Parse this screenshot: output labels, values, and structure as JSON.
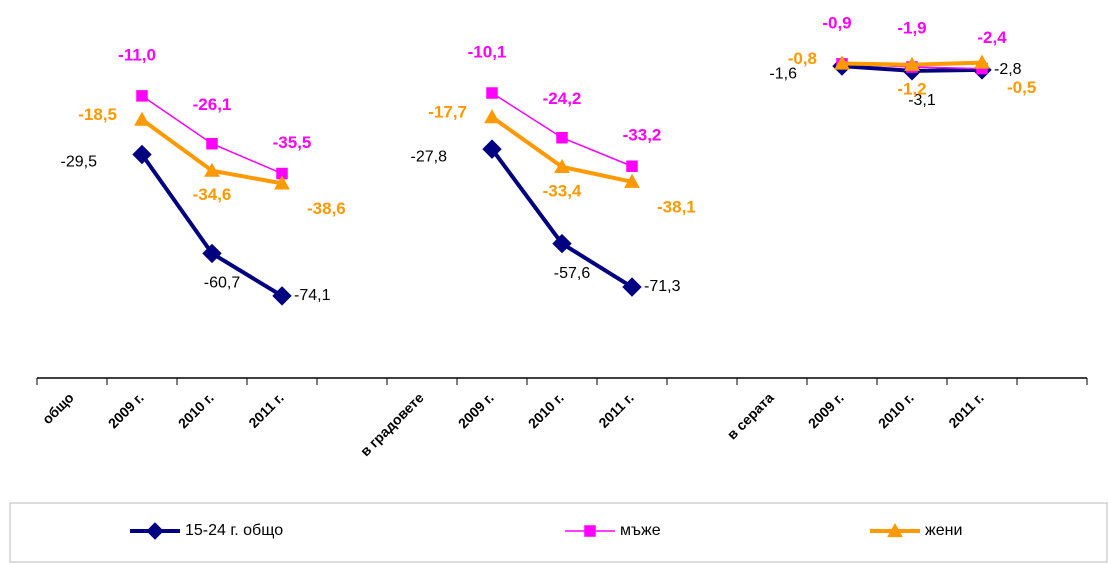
{
  "chart_data": {
    "type": "line",
    "categories": [
      "общо",
      "2009 г.",
      "2010 г.",
      "2011 г.",
      null,
      "в градовете",
      "2009 г.",
      "2010 г.",
      "2011 г.",
      null,
      "в серата",
      "2009 г.",
      "2010 г.",
      "2011 г.",
      null
    ],
    "ylim": [
      -100,
      0
    ],
    "legend": "bottom",
    "series": [
      {
        "name": "15-24 г. общо",
        "color": "#000080",
        "marker": "diamond",
        "values": [
          null,
          -29.5,
          -60.7,
          -74.1,
          null,
          null,
          -27.8,
          -57.6,
          -71.3,
          null,
          null,
          -1.6,
          -3.1,
          -2.8,
          null
        ],
        "value_labels": [
          null,
          "-29,5",
          "-60,7",
          "-74,1",
          null,
          null,
          "-27,8",
          "-57,6",
          "-71,3",
          null,
          null,
          "-1,6",
          "-3,1",
          "-2,8",
          null
        ]
      },
      {
        "name": "мъже",
        "color": "#ff00ff",
        "marker": "square",
        "values": [
          null,
          -11.0,
          -26.1,
          -35.5,
          null,
          null,
          -10.1,
          -24.2,
          -33.2,
          null,
          null,
          -0.9,
          -1.9,
          -2.4,
          null
        ],
        "value_labels": [
          null,
          "-11,0",
          "-26,1",
          "-35,5",
          null,
          null,
          "-10,1",
          "-24,2",
          "-33,2",
          null,
          null,
          "-0,9",
          "-1,9",
          "-2,4",
          null
        ]
      },
      {
        "name": "жени",
        "color": "#ff9900",
        "marker": "triangle",
        "values": [
          null,
          -18.5,
          -34.6,
          -38.6,
          null,
          null,
          -17.7,
          -33.4,
          -38.1,
          null,
          null,
          -0.8,
          -1.2,
          -0.5,
          null
        ],
        "value_labels": [
          null,
          "-18,5",
          "-34,6",
          "-38,6",
          null,
          null,
          "-17,7",
          "-33,4",
          "-38,1",
          null,
          null,
          "-0,8",
          "-1,2",
          "-0,5",
          null
        ]
      }
    ]
  }
}
